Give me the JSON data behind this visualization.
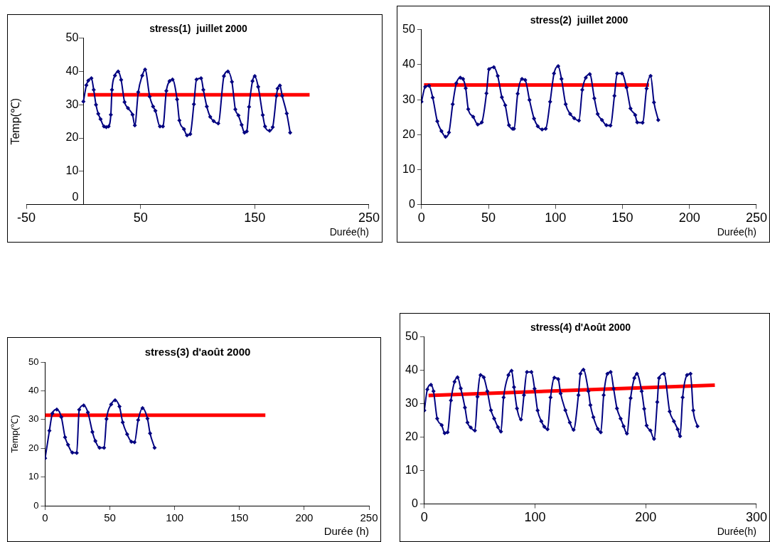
{
  "chart_data": [
    {
      "type": "line",
      "title": "stress(1)  juillet 2000",
      "xlabel": "Durée(h)",
      "ylabel": "Temp(℃)",
      "marker": "diamond",
      "xlim": [
        -50,
        250
      ],
      "xticks": [
        -50,
        50,
        150,
        250
      ],
      "ylim": [
        0,
        50
      ],
      "yticks": [
        0,
        10,
        20,
        30,
        40,
        50
      ],
      "series": [
        {
          "color": "#000080",
          "x": [
            0,
            2.6,
            4.3,
            7,
            9,
            11,
            13,
            15,
            18,
            20,
            22,
            24,
            25,
            27.6,
            30.4,
            33,
            36,
            39,
            43,
            45,
            48,
            51.5,
            54,
            58,
            61,
            63,
            67,
            69.6,
            72.6,
            75.4,
            78,
            82,
            84,
            88,
            90.7,
            93.5,
            96.7,
            99,
            103,
            105,
            108,
            111,
            114,
            118,
            123,
            126.5,
            130,
            133,
            135.7,
            138.5,
            141,
            143,
            145,
            148,
            150,
            153,
            157,
            159,
            163,
            165.7,
            169,
            170,
            172,
            174,
            178,
            181
          ],
          "values": [
            31,
            35.9,
            37.3,
            38,
            34.5,
            30,
            27.3,
            25.7,
            23.5,
            23.3,
            23.5,
            27,
            34.5,
            38.8,
            40,
            37.5,
            30.8,
            29,
            27,
            23.8,
            33.8,
            38.8,
            40.6,
            32.5,
            29.5,
            28.2,
            23.5,
            23.5,
            34.2,
            37.1,
            37.6,
            31.6,
            25.3,
            22.7,
            20.8,
            21.2,
            30.2,
            37.6,
            38,
            34.5,
            29.5,
            26.4,
            25.1,
            24.4,
            38.6,
            40,
            36.9,
            28.6,
            26.8,
            24,
            21.6,
            22,
            29.4,
            37.1,
            38.6,
            35.4,
            26.9,
            23.5,
            22.2,
            23.3,
            32.7,
            34.9,
            35.8,
            32.7,
            27.4,
            21.6
          ]
        },
        {
          "type": "line",
          "color": "#ff0000",
          "marker": "none",
          "x": [
            3.7,
            198
          ],
          "values": [
            33,
            33
          ]
        }
      ]
    },
    {
      "type": "line",
      "title": "stress(2)  juillet 2000",
      "xlabel": "Durée(h)",
      "marker": "diamond",
      "xlim": [
        0,
        250
      ],
      "xticks": [
        0,
        50,
        100,
        150,
        200,
        250
      ],
      "ylim": [
        0,
        50
      ],
      "yticks": [
        0,
        10,
        20,
        30,
        40,
        50
      ],
      "series": [
        {
          "color": "#000080",
          "x": [
            0,
            2.8,
            5.6,
            8.4,
            11.8,
            14.9,
            18,
            20.5,
            23.3,
            26,
            29,
            31,
            33,
            34.9,
            38.6,
            42,
            45,
            48.5,
            50.4,
            54,
            56.9,
            60,
            62.5,
            65.3,
            68,
            69,
            71.8,
            75,
            77.4,
            80.6,
            84,
            86.8,
            90,
            92.7,
            96,
            98.9,
            102,
            104.5,
            107.6,
            111,
            114,
            117.5,
            120,
            122.6,
            125.6,
            129,
            131.5,
            134.7,
            138,
            141,
            144,
            146,
            149.6,
            153,
            156,
            159.5,
            161,
            165,
            168,
            171,
            173.5,
            176.7
          ],
          "values": [
            29.4,
            33.7,
            34,
            30.6,
            23.8,
            21,
            19.4,
            20.6,
            28.7,
            34.7,
            36.3,
            35.9,
            33.3,
            27.3,
            25.1,
            22.9,
            23.5,
            31.8,
            38.7,
            39.3,
            36.8,
            30.7,
            28.4,
            22.7,
            21.7,
            21.7,
            31.7,
            35.9,
            35.6,
            29.9,
            24.6,
            22.4,
            21.5,
            21.7,
            29.4,
            37.5,
            39.6,
            35.9,
            28.7,
            25.9,
            24.7,
            24,
            32.8,
            36.3,
            37.3,
            30.4,
            25.9,
            24.2,
            22.7,
            22.6,
            31.1,
            37.5,
            37.5,
            33.5,
            27.5,
            25.6,
            23.5,
            23.4,
            33.2,
            36.8,
            29.2,
            24.2
          ]
        },
        {
          "type": "line",
          "color": "#ff0000",
          "marker": "none",
          "x": [
            1.9,
            169.8
          ],
          "values": [
            34.2,
            34.2
          ]
        }
      ]
    },
    {
      "type": "line",
      "title": "stress(3) d'août 2000",
      "xlabel": "Durée (h)",
      "ylabel": "Temp(℃)",
      "marker": "diamond",
      "xlim": [
        0,
        250
      ],
      "xticks": [
        0,
        50,
        100,
        150,
        200,
        250
      ],
      "ylim": [
        0,
        50
      ],
      "yticks": [
        0,
        10,
        20,
        30,
        40,
        50
      ],
      "series": [
        {
          "color": "#000080",
          "x": [
            0,
            3.3,
            5.6,
            9,
            12.5,
            15.4,
            17.7,
            21,
            24.4,
            26.3,
            29.8,
            33,
            36.5,
            38.8,
            42,
            45.5,
            47.4,
            51,
            54,
            57.4,
            59.9,
            63.3,
            66.6,
            69,
            71.8,
            75.2,
            79,
            81,
            84.5
          ],
          "values": [
            16.5,
            26.1,
            32.1,
            33.5,
            30.9,
            23.8,
            21.2,
            18.5,
            18.4,
            33.4,
            34.9,
            32.5,
            25.7,
            22.5,
            20.2,
            20.2,
            30.2,
            35.3,
            36.7,
            34.5,
            29,
            24.9,
            22.3,
            22.1,
            29.8,
            34,
            30.3,
            25.2,
            20.2
          ]
        },
        {
          "type": "line",
          "color": "#ff0000",
          "marker": "none",
          "x": [
            0,
            170
          ],
          "values": [
            31.5,
            31.5
          ]
        }
      ]
    },
    {
      "type": "line",
      "title": "stress(4) d'Août 2000",
      "xlabel": "Durée(h)",
      "marker": "diamond",
      "xlim": [
        0,
        300
      ],
      "xticks": [
        0,
        100,
        200,
        300
      ],
      "ylim": [
        0,
        50
      ],
      "yticks": [
        0,
        10,
        20,
        30,
        40,
        50
      ],
      "series": [
        {
          "color": "#000080",
          "x": [
            0,
            2.7,
            6,
            8.3,
            11.6,
            15.7,
            18.4,
            21,
            24,
            27.3,
            30,
            32.9,
            36.7,
            39,
            41.9,
            45.7,
            48,
            50.8,
            53.7,
            56.9,
            60.2,
            63.1,
            66.5,
            69.2,
            71.6,
            76,
            78.8,
            81,
            83.7,
            87.3,
            90,
            92.7,
            96.7,
            99.6,
            102.3,
            105.7,
            108.4,
            111.3,
            114,
            117.5,
            120.9,
            123.1,
            127.4,
            131.4,
            134.8,
            139.2,
            141,
            143.7,
            148.2,
            150,
            152.7,
            156.7,
            159.4,
            162,
            165.4,
            168.3,
            171,
            174,
            177.3,
            180,
            183,
            186.3,
            189.7,
            192,
            196.3,
            198.6,
            200.8,
            204.2,
            207.5,
            210.4,
            212,
            216.5,
            221.6,
            225.4,
            228.8,
            231,
            233.3,
            237.3,
            240.4,
            242.9,
            246.7
          ],
          "values": [
            28,
            34.3,
            35.7,
            33.8,
            25.6,
            23.6,
            21.2,
            21.5,
            31,
            36.6,
            37.9,
            34.6,
            28.9,
            24.4,
            22.9,
            22,
            32.1,
            38.6,
            37.9,
            33.8,
            28.1,
            25.6,
            23,
            21.7,
            31.9,
            38.6,
            39.9,
            35,
            28.6,
            25.3,
            32.6,
            39.5,
            39.5,
            34.5,
            28,
            24.8,
            23.1,
            22.4,
            31.9,
            37.8,
            37.4,
            33.1,
            28.1,
            24.4,
            22.2,
            32.6,
            39,
            40.2,
            33.8,
            29.6,
            26,
            22.5,
            21.5,
            32.6,
            39,
            39.5,
            34.5,
            28.6,
            25.6,
            23.3,
            21.1,
            31.7,
            37.7,
            39,
            33.8,
            28.5,
            23.5,
            22,
            19.5,
            30.5,
            37.7,
            39,
            27.7,
            24.8,
            22.4,
            20.3,
            31.9,
            38.6,
            39,
            28,
            23.3
          ]
        },
        {
          "type": "line",
          "color": "#ff0000",
          "marker": "none",
          "x": [
            3.8,
            262.4
          ],
          "values": [
            32.5,
            35.6
          ]
        }
      ]
    }
  ]
}
